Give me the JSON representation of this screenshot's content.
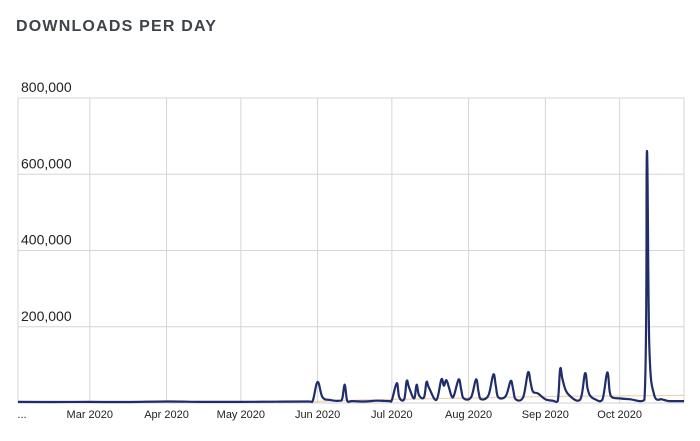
{
  "title": "DOWNLOADS PER DAY",
  "colors": {
    "line": "#1f2d6b",
    "trend": "#e8c9a0",
    "grid": "#d6d6d6"
  },
  "chart_data": {
    "type": "line",
    "title": "DOWNLOADS PER DAY",
    "xlabel": "",
    "ylabel": "",
    "grid": true,
    "ylim": [
      0,
      800000
    ],
    "yticks": [
      200000,
      400000,
      600000,
      800000
    ],
    "ytick_labels": [
      "200,000",
      "400,000",
      "600,000",
      "800,000"
    ],
    "xlim": [
      "2020-02-01",
      "2020-10-27"
    ],
    "xticks": [
      "2020-03-01",
      "2020-04-01",
      "2020-05-01",
      "2020-06-01",
      "2020-07-01",
      "2020-08-01",
      "2020-09-01",
      "2020-10-01"
    ],
    "xtick_labels": [
      "Mar 2020",
      "Apr 2020",
      "May 2020",
      "Jun 2020",
      "Jul 2020",
      "Aug 2020",
      "Sep 2020",
      "Oct 2020"
    ],
    "first_xtick_label": "...",
    "series": [
      {
        "x": [
          "2020-02-01",
          "2020-02-15",
          "2020-03-01",
          "2020-03-15",
          "2020-04-01",
          "2020-04-15",
          "2020-05-01",
          "2020-05-15",
          "2020-05-28",
          "2020-05-30",
          "2020-06-01",
          "2020-06-03",
          "2020-06-06",
          "2020-06-10",
          "2020-06-11",
          "2020-06-12",
          "2020-06-13",
          "2020-06-15",
          "2020-06-20",
          "2020-06-25",
          "2020-06-30",
          "2020-07-01",
          "2020-07-03",
          "2020-07-04",
          "2020-07-06",
          "2020-07-07",
          "2020-07-08",
          "2020-07-10",
          "2020-07-11",
          "2020-07-12",
          "2020-07-14",
          "2020-07-15",
          "2020-07-16",
          "2020-07-19",
          "2020-07-21",
          "2020-07-22",
          "2020-07-23",
          "2020-07-24",
          "2020-07-25",
          "2020-07-26",
          "2020-07-28",
          "2020-07-29",
          "2020-07-30",
          "2020-08-02",
          "2020-08-04",
          "2020-08-05",
          "2020-08-06",
          "2020-08-09",
          "2020-08-11",
          "2020-08-12",
          "2020-08-13",
          "2020-08-16",
          "2020-08-18",
          "2020-08-19",
          "2020-08-20",
          "2020-08-23",
          "2020-08-25",
          "2020-08-26",
          "2020-08-27",
          "2020-08-29",
          "2020-09-01",
          "2020-09-04",
          "2020-09-06",
          "2020-09-07",
          "2020-09-08",
          "2020-09-10",
          "2020-09-15",
          "2020-09-17",
          "2020-09-18",
          "2020-09-19",
          "2020-09-21",
          "2020-09-24",
          "2020-09-26",
          "2020-09-27",
          "2020-09-28",
          "2020-10-01",
          "2020-10-05",
          "2020-10-11",
          "2020-10-12",
          "2020-10-13",
          "2020-10-15",
          "2020-10-18",
          "2020-10-19",
          "2020-10-20",
          "2020-10-21",
          "2020-10-22",
          "2020-10-24",
          "2020-10-26",
          "2020-10-27"
        ],
        "values": [
          3000,
          2500,
          3000,
          2500,
          4000,
          3000,
          3000,
          3500,
          4000,
          5000,
          55000,
          15000,
          8000,
          6000,
          12000,
          48000,
          5000,
          5000,
          4000,
          6000,
          5000,
          8000,
          52000,
          15000,
          10000,
          58000,
          40000,
          12000,
          48000,
          20000,
          15000,
          55000,
          40000,
          8000,
          62000,
          45000,
          60000,
          42000,
          20000,
          18000,
          62000,
          35000,
          12000,
          15000,
          62000,
          30000,
          10000,
          20000,
          75000,
          45000,
          15000,
          18000,
          58000,
          35000,
          10000,
          15000,
          80000,
          55000,
          30000,
          25000,
          10000,
          6000,
          5000,
          90000,
          60000,
          25000,
          8000,
          78000,
          40000,
          20000,
          10000,
          8000,
          80000,
          30000,
          15000,
          12000,
          10000,
          8000,
          660000,
          150000,
          20000,
          10000,
          8000,
          6000,
          5000,
          5000,
          5000,
          5000,
          5000
        ]
      }
    ]
  }
}
